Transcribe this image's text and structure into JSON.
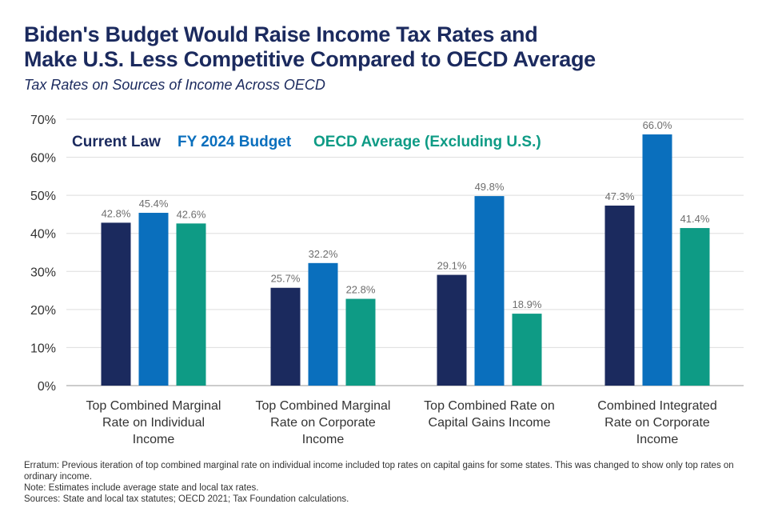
{
  "title_line1": "Biden's Budget Would Raise Income Tax Rates and",
  "title_line2": "Make U.S. Less Competitive Compared to OECD Average",
  "subtitle": "Tax Rates on Sources of Income Across OECD",
  "notes": {
    "erratum": "Erratum: Previous iteration of top combined marginal rate on individual income included top rates on capital gains for some states. This was changed to show only top rates on ordinary income.",
    "note": "Note: Estimates include average state and local tax rates.",
    "sources": "Sources: State and local tax statutes; OECD 2021; Tax Foundation calculations."
  },
  "chart_data": {
    "type": "bar",
    "categories": [
      [
        "Top Combined Marginal",
        "Rate on Individual",
        "Income"
      ],
      [
        "Top Combined Marginal",
        "Rate on Corporate",
        "Income"
      ],
      [
        "Top Combined Rate on",
        "Capital Gains Income"
      ],
      [
        "Combined Integrated",
        "Rate on Corporate",
        "Income"
      ]
    ],
    "series": [
      {
        "name": "Current Law",
        "color": "#1b2a5e",
        "values": [
          42.8,
          25.7,
          29.1,
          47.3
        ]
      },
      {
        "name": "FY 2024 Budget",
        "color": "#0a6fbd",
        "values": [
          45.4,
          32.2,
          49.8,
          66.0
        ]
      },
      {
        "name": "OECD Average (Excluding U.S.)",
        "color": "#0e9b85",
        "values": [
          42.6,
          22.8,
          18.9,
          41.4
        ]
      }
    ],
    "ylim": [
      0,
      70
    ],
    "yticks": [
      0,
      10,
      20,
      30,
      40,
      50,
      60,
      70
    ],
    "ytick_format": "%",
    "legend": "top-left",
    "grid": true
  }
}
